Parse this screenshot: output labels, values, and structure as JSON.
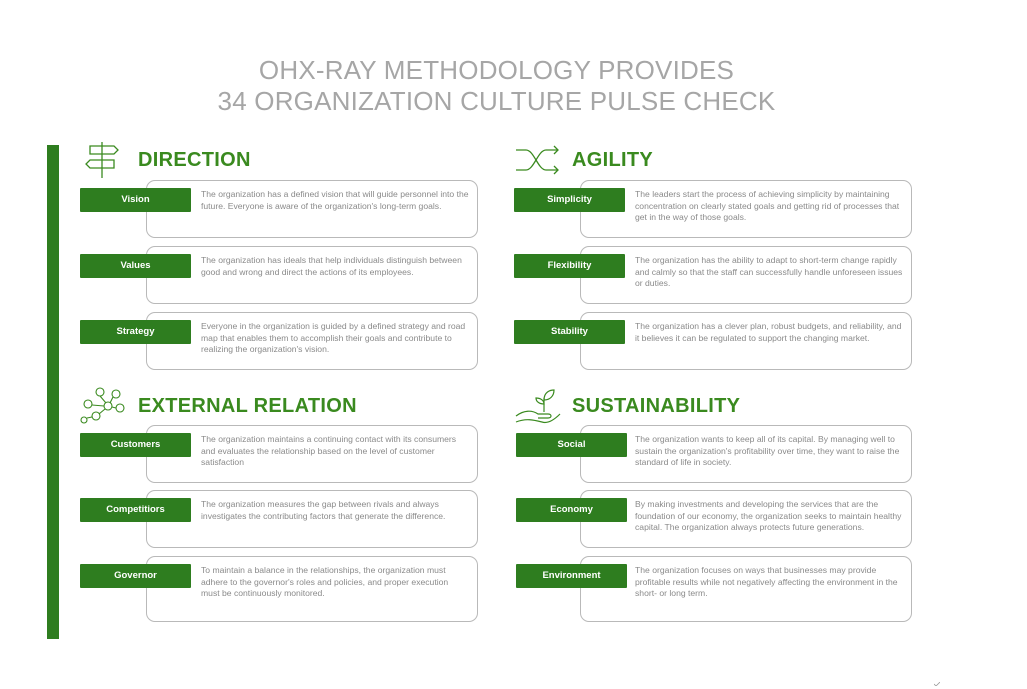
{
  "title": {
    "line1": "OHX-RAY METHODOLOGY PROVIDES",
    "line2": "34 ORGANIZATION CULTURE PULSE CHECK"
  },
  "colors": {
    "accent": "#2e7d1f",
    "heading": "#3a8a1f",
    "title_gray": "#a6a6a6",
    "body_text": "#8a8a8a"
  },
  "sections": [
    {
      "title": "DIRECTION",
      "icon": "signpost-icon",
      "items": [
        {
          "label": "Vision",
          "text": "The organization has a defined vision that will guide personnel into the future. Everyone is aware of the organization's long-term goals."
        },
        {
          "label": "Values",
          "text": "The organization has ideals that help individuals distinguish between good and wrong and direct the actions of its employees."
        },
        {
          "label": "Strategy",
          "text": "Everyone in the organization is guided by a defined strategy and road map that enables them to accomplish their goals and contribute to realizing the organization's vision."
        }
      ]
    },
    {
      "title": "AGILITY",
      "icon": "shuffle-arrows-icon",
      "items": [
        {
          "label": "Simplicity",
          "text": "The leaders start the process of achieving simplicity by maintaining concentration on clearly stated goals and getting rid of processes that get in the way of those goals."
        },
        {
          "label": "Flexibility",
          "text": "The organization has the ability to adapt to short-term change rapidly and calmly so that the staff can successfully handle unforeseen issues or duties."
        },
        {
          "label": "Stability",
          "text": "The organization has a clever plan, robust budgets, and reliability, and it believes it can be regulated to support the changing market."
        }
      ]
    },
    {
      "title": "EXTERNAL RELATION",
      "icon": "network-people-icon",
      "items": [
        {
          "label": "Customers",
          "text": "The organization maintains a continuing contact with its consumers and evaluates the relationship based on the level of customer satisfaction"
        },
        {
          "label": "Competitiors",
          "text": "The organization measures the gap between rivals and always investigates the contributing factors that generate the difference."
        },
        {
          "label": "Governor",
          "text": "To maintain a balance in the relationships, the organization must adhere to the governor's roles and policies, and proper execution must be continuously monitored."
        }
      ]
    },
    {
      "title": "SUSTAINABILITY",
      "icon": "hand-plant-icon",
      "items": [
        {
          "label": "Social",
          "text": "The organization wants to keep all of its capital.  By managing well to sustain the organization's profitability over time, they want to raise the standard of life in society."
        },
        {
          "label": "Economy",
          "text": "By making investments and developing the services that are the foundation of our economy, the organization seeks to maintain healthy capital. The organization always protects future generations."
        },
        {
          "label": "Environment",
          "text": "The organization focuses on ways that businesses may provide profitable results while not negatively affecting the environment in the short- or long term."
        }
      ]
    }
  ]
}
